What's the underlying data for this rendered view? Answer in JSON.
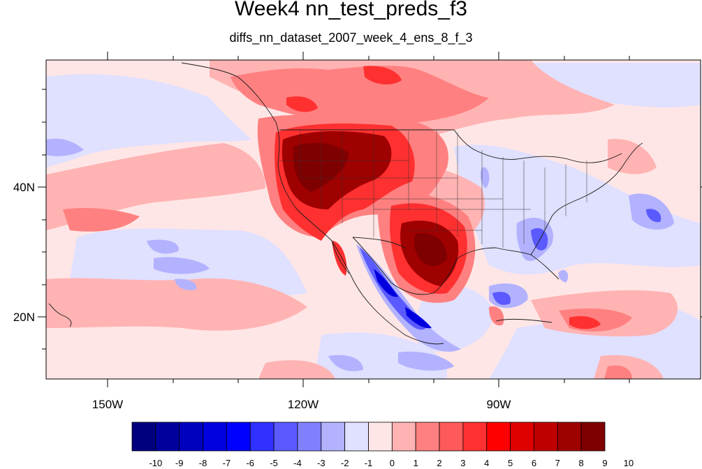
{
  "header": {
    "title": "Week4 nn_test_preds_f3",
    "subtitle": "diffs_nn_dataset_2007_week_4_ens_8_f_3"
  },
  "map": {
    "projection": "cylindrical equidistant",
    "region": "North America and eastern Pacific",
    "lon_labels": [
      "150W",
      "120W",
      "90W"
    ],
    "lat_labels": [
      "40N",
      "20N"
    ],
    "field": "temperature prediction difference",
    "pattern_notes": {
      "strong_warm": [
        "Pacific Northwest / Great Basin / California",
        "Texas and southern Great Plains"
      ],
      "moderate_warm": [
        "western Canada",
        "central Plains",
        "eastern Pacific subtropics",
        "Caribbean south of Cuba"
      ],
      "cool": [
        "Gulf of California / western Mexico coast",
        "Southeast US",
        "Gulf of Mexico",
        "western Atlantic patches"
      ]
    }
  },
  "colorbar": {
    "labels": [
      "-10",
      "-9",
      "-8",
      "-7",
      "-6",
      "-5",
      "-4",
      "-3",
      "-2",
      "-1",
      "0",
      "1",
      "2",
      "3",
      "4",
      "5",
      "6",
      "7",
      "8",
      "9",
      "10"
    ],
    "colors": [
      "#00007f",
      "#00009f",
      "#0000bf",
      "#0000df",
      "#0000ff",
      "#3030ff",
      "#5a5aff",
      "#8080ff",
      "#b2b2ff",
      "#e0e0ff",
      "#ffe6e6",
      "#ffb3b3",
      "#ff8080",
      "#ff5a5a",
      "#ff3030",
      "#ff0000",
      "#df0000",
      "#bf0000",
      "#9f0000",
      "#7f0000"
    ]
  }
}
